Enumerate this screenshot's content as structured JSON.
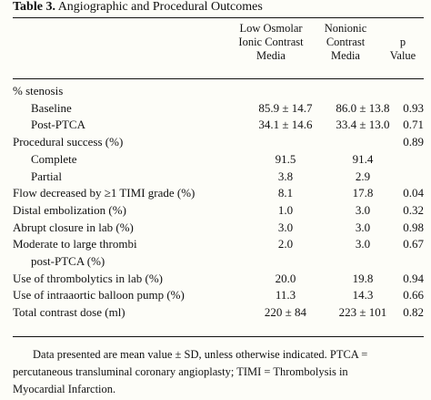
{
  "table": {
    "title_bold": "Table 3.",
    "title_rest": "Angiographic and Procedural Outcomes",
    "headers": {
      "col1": "Low Osmolar\nIonic Contrast\nMedia",
      "col2": "Nonionic\nContrast\nMedia",
      "col3": "p\nValue"
    },
    "rows": [
      {
        "label": "% stenosis",
        "c1": "",
        "c2": "",
        "c3": "",
        "indent": false
      },
      {
        "label": "Baseline",
        "c1": "85.9 ± 14.7",
        "c2": "86.0 ± 13.8",
        "c3": "0.93",
        "indent": true
      },
      {
        "label": "Post-PTCA",
        "c1": "34.1 ± 14.6",
        "c2": "33.4 ± 13.0",
        "c3": "0.71",
        "indent": true
      },
      {
        "label": "Procedural success (%)",
        "c1": "",
        "c2": "",
        "c3": "0.89",
        "indent": false
      },
      {
        "label": "Complete",
        "c1": "91.5",
        "c2": "91.4",
        "c3": "",
        "indent": true
      },
      {
        "label": "Partial",
        "c1": "3.8",
        "c2": "2.9",
        "c3": "",
        "indent": true
      },
      {
        "label": "Flow decreased by ≥1 TIMI grade (%)",
        "c1": "8.1",
        "c2": "17.8",
        "c3": "0.04",
        "indent": false
      },
      {
        "label": "Distal embolization (%)",
        "c1": "1.0",
        "c2": "3.0",
        "c3": "0.32",
        "indent": false
      },
      {
        "label": "Abrupt closure in lab (%)",
        "c1": "3.0",
        "c2": "3.0",
        "c3": "0.98",
        "indent": false
      },
      {
        "label": "Moderate to large thrombi",
        "c1": "2.0",
        "c2": "3.0",
        "c3": "0.67",
        "indent": false
      },
      {
        "label": "post-PTCA (%)",
        "c1": "",
        "c2": "",
        "c3": "",
        "indent": true
      },
      {
        "label": "Use of thrombolytics in lab (%)",
        "c1": "20.0",
        "c2": "19.8",
        "c3": "0.94",
        "indent": false
      },
      {
        "label": "Use of intraaortic balloon pump (%)",
        "c1": "11.3",
        "c2": "14.3",
        "c3": "0.66",
        "indent": false
      },
      {
        "label": "Total contrast dose (ml)",
        "c1": "220 ± 84",
        "c2": "223 ± 101",
        "c3": "0.82",
        "indent": false
      }
    ],
    "footnote": {
      "line1": "Data presented are mean value ± SD, unless otherwise indicated. PTCA =",
      "line2": "percutaneous transluminal coronary angioplasty; TIMI = Thrombolysis in",
      "line3": "Myocardial Infarction."
    }
  }
}
